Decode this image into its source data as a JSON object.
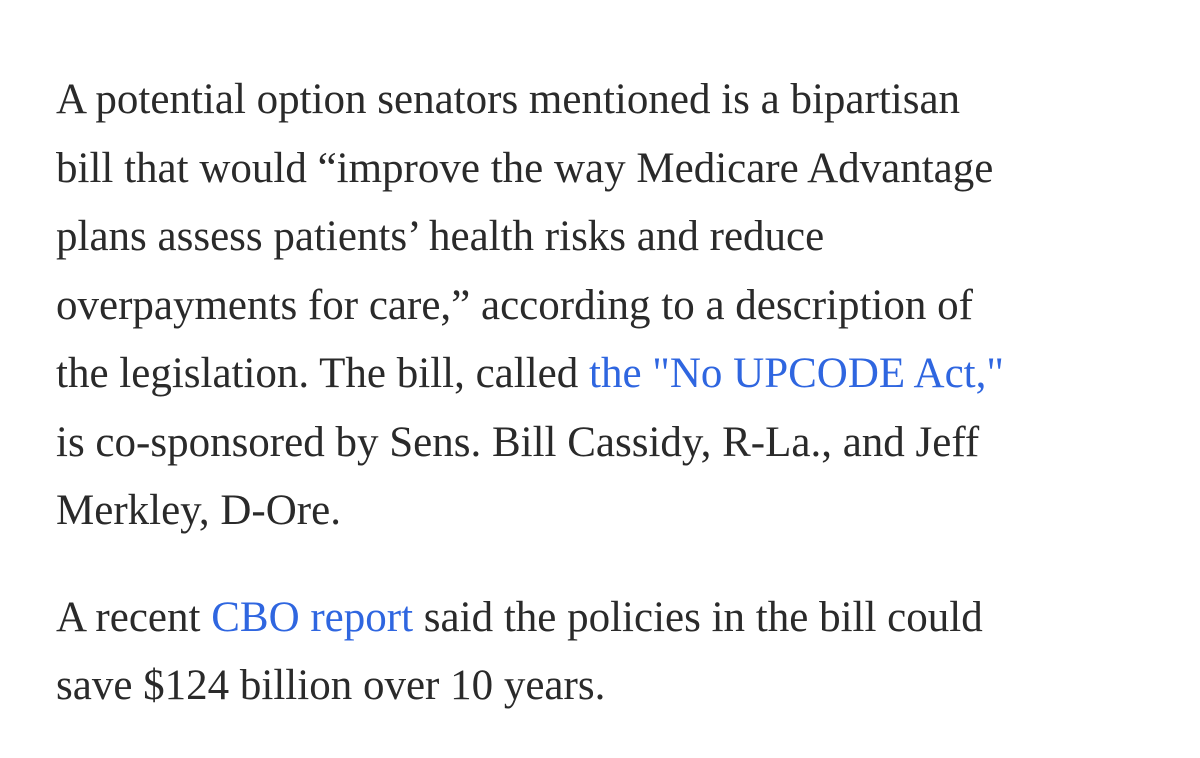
{
  "article": {
    "paragraph_1": {
      "line_1": "A potential option senators mentioned is a bipartisan",
      "line_2": "bill that would “improve the way Medicare Advantage",
      "line_3": "plans assess patients’ health risks and reduce",
      "line_4": "overpayments for care,” according to a description of",
      "line_5_before": "the legislation. The bill, called ",
      "line_5_link": "the \"No UPCODE Act,\"",
      "line_6": "is co-sponsored by Sens. Bill Cassidy, R-La., and Jeff",
      "line_7": "Merkley, D-Ore."
    },
    "paragraph_2": {
      "line_1_before": "A recent ",
      "line_1_link": "CBO report",
      "line_1_after": " said the policies in the bill could",
      "line_2": "save $124 billion over 10 years."
    },
    "link_color": "#2f66e0",
    "text_color": "#2a2a2a"
  }
}
